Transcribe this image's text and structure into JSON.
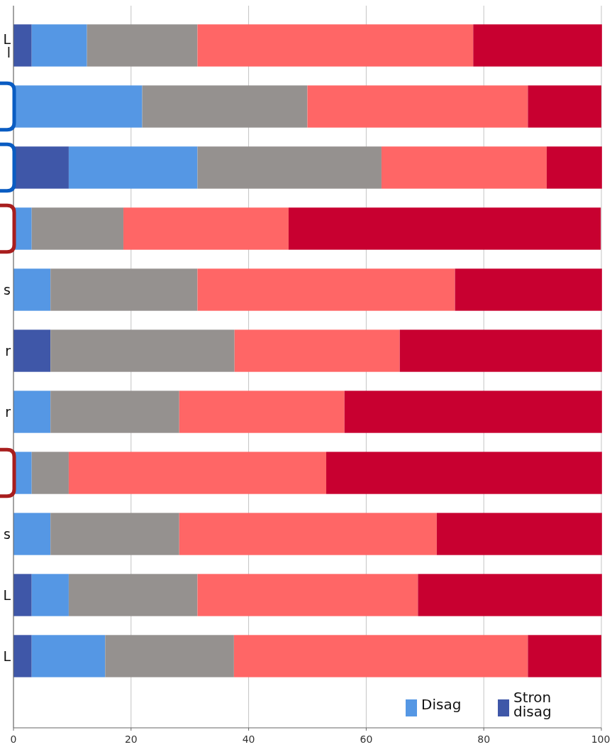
{
  "chart_data": {
    "type": "bar",
    "orientation": "horizontal",
    "stacked": true,
    "categories": [
      "L\nl",
      null,
      null,
      null,
      "s",
      "r",
      "r",
      null,
      "s",
      "L",
      "L"
    ],
    "series": [
      {
        "name": "Stron\ndisag",
        "color": "#3f57a8",
        "values": [
          3.1,
          0,
          9.4,
          0,
          0,
          6.3,
          0,
          0,
          0,
          3.1,
          3.1
        ]
      },
      {
        "name": "Disag",
        "color": "#5597e4",
        "values": [
          9.4,
          21.9,
          21.9,
          3.1,
          6.3,
          0,
          6.3,
          3.1,
          6.3,
          6.3,
          12.5
        ]
      },
      {
        "color": "#95918f",
        "values": [
          18.8,
          28.1,
          31.3,
          15.6,
          25.0,
          31.3,
          21.9,
          6.3,
          21.9,
          21.9,
          21.9
        ]
      },
      {
        "color": "#ff6666",
        "values": [
          46.9,
          37.5,
          28.1,
          28.1,
          43.8,
          28.1,
          28.1,
          43.8,
          43.8,
          37.5,
          50.0
        ]
      },
      {
        "color": "#c80030",
        "values": [
          21.9,
          12.5,
          9.4,
          53.1,
          25.0,
          34.4,
          43.8,
          46.9,
          28.1,
          31.3,
          12.5
        ]
      }
    ],
    "xlim": [
      0,
      100
    ],
    "xticks": [
      0,
      20,
      40,
      60,
      80,
      100
    ],
    "grid": "x",
    "legend": "bottom right"
  }
}
